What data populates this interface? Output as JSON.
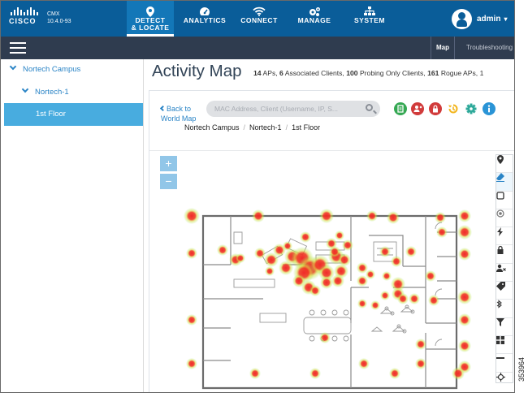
{
  "header": {
    "logo_text": "CISCO",
    "product_name": "CMX",
    "product_version": "10.4.0-93",
    "nav": [
      {
        "label_line1": "DETECT",
        "label_line2": "& LOCATE",
        "icon": "map-pin-icon",
        "active": true
      },
      {
        "label_line1": "ANALYTICS",
        "label_line2": "",
        "icon": "gauge-icon"
      },
      {
        "label_line1": "CONNECT",
        "label_line2": "",
        "icon": "wifi-icon"
      },
      {
        "label_line1": "MANAGE",
        "label_line2": "",
        "icon": "gears-icon"
      },
      {
        "label_line1": "SYSTEM",
        "label_line2": "",
        "icon": "hierarchy-icon"
      }
    ],
    "user": "admin",
    "user_caret": "▾",
    "brand_color": "#0a5d99"
  },
  "subnav": {
    "tabs": [
      "Map",
      "Troubleshooting"
    ],
    "active_tab": "Map",
    "bar_color": "#2f3c4f"
  },
  "sidebar": {
    "campus": "Nortech Campus",
    "building": "Nortech-1",
    "floor": "1st Floor",
    "selected_color": "#48acdf"
  },
  "main": {
    "title": "Activity Map",
    "summary": {
      "aps_count": "14",
      "aps_label": "APs,",
      "associated_count": "6",
      "associated_label": "Associated Clients,",
      "probing_count": "100",
      "probing_label": "Probing Only Clients,",
      "rogue_count": "161",
      "rogue_label": "Rogue APs, 1"
    },
    "back_link": "Back to World Map",
    "breadcrumb": [
      "Nortech Campus",
      "Nortech-1",
      "1st Floor"
    ],
    "breadcrumb_sep": "/",
    "search_placeholder": "MAC Address, Client (Username, IP, S...",
    "action_buttons": [
      {
        "icon": "document-icon",
        "color": "#35a853"
      },
      {
        "icon": "users-remove-icon",
        "color": "#d13b3b"
      },
      {
        "icon": "lock-icon",
        "color": "#d13b3b"
      },
      {
        "icon": "history-icon",
        "color": "#f2b51c"
      },
      {
        "icon": "gear-icon",
        "color": "#2ea99a"
      },
      {
        "icon": "info-icon",
        "color": "#2a94d6"
      }
    ],
    "zoom_in": "+",
    "zoom_out": "−",
    "map_tools": [
      "location-pin-icon",
      "eraser-icon",
      "square-icon",
      "target-icon",
      "lightning-icon",
      "lock-icon",
      "user-remove-icon",
      "tag-icon",
      "bluetooth-icon",
      "filter-icon",
      "grid-icon",
      "minus-icon",
      "crosshair-icon"
    ],
    "heat_color": "#f02a2a"
  },
  "figure_id": "353964"
}
